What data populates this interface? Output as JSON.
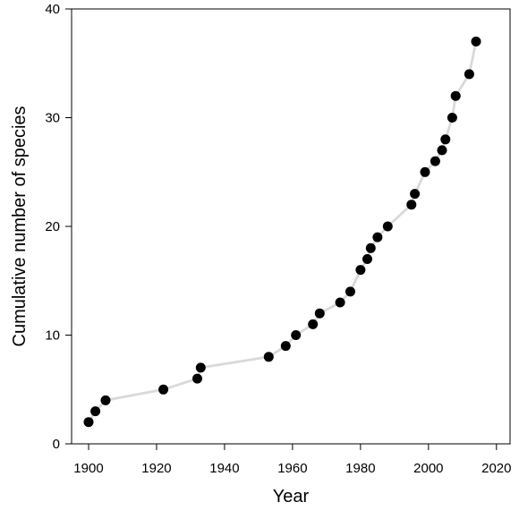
{
  "chart_data": {
    "type": "line",
    "title": "",
    "xlabel": "Year",
    "ylabel": "Cumulative number of species",
    "xlim": [
      1895,
      2024
    ],
    "ylim": [
      0,
      40
    ],
    "xticks": [
      1900,
      1920,
      1940,
      1960,
      1980,
      2000,
      2020
    ],
    "yticks": [
      0,
      10,
      20,
      30,
      40
    ],
    "grid": false,
    "legend": "none",
    "line_color": "#d9d9d9",
    "marker_color": "#000000",
    "series": [
      {
        "x": [
          1900,
          1902,
          1905,
          1922,
          1932,
          1933,
          1953,
          1958,
          1961,
          1966,
          1968,
          1974,
          1977,
          1980,
          1982,
          1983,
          1985,
          1988,
          1995,
          1996,
          1999,
          2002,
          2004,
          2005,
          2007,
          2008,
          2012,
          2014
        ],
        "y": [
          2,
          3,
          4,
          5,
          6,
          7,
          8,
          9,
          10,
          11,
          12,
          13,
          14,
          16,
          17,
          18,
          19,
          20,
          22,
          23,
          25,
          26,
          27,
          28,
          30,
          32,
          34,
          37
        ]
      }
    ]
  }
}
